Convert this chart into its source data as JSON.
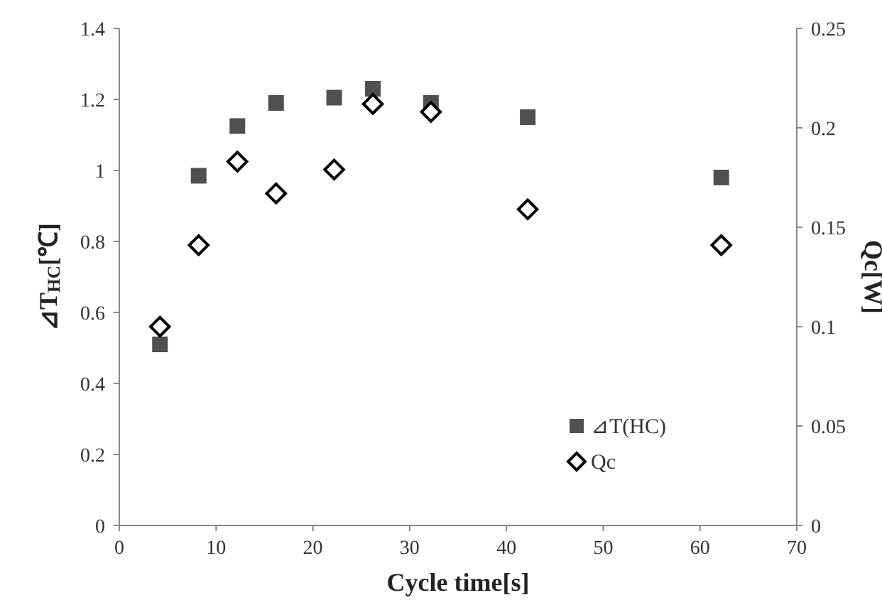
{
  "chart_data": {
    "type": "scatter",
    "xlabel": "Cycle time[s]",
    "ylabel": "⊿T$_{HC}$[℃]",
    "y2label": "Qc[W]",
    "xlim": [
      0,
      70
    ],
    "xticks": [
      0,
      10,
      20,
      30,
      40,
      50,
      60,
      70
    ],
    "ylim": [
      0,
      1.4
    ],
    "yticks": [
      0,
      0.2,
      0.4,
      0.6,
      0.8,
      1,
      1.2,
      1.4
    ],
    "y2lim": [
      0,
      0.25
    ],
    "y2ticks": [
      0,
      0.05,
      0.1,
      0.15,
      0.2,
      0.25
    ],
    "x": [
      4.2,
      8.2,
      12.2,
      16.2,
      22.2,
      26.2,
      32.2,
      42.2,
      62.2
    ],
    "legend": "bottom right",
    "grid": false,
    "series": [
      {
        "name": "⊿T(HC)",
        "color": "#505050",
        "marker": "square",
        "values": [
          0.51,
          0.985,
          1.125,
          1.19,
          1.205,
          1.23,
          1.19,
          1.15,
          0.98
        ]
      },
      {
        "name": "Qc",
        "color": "#000000",
        "marker": "diamond",
        "axis": "y2",
        "values": [
          0.1,
          0.141,
          0.183,
          0.167,
          0.179,
          0.212,
          0.208,
          0.159,
          0.141
        ]
      }
    ]
  }
}
